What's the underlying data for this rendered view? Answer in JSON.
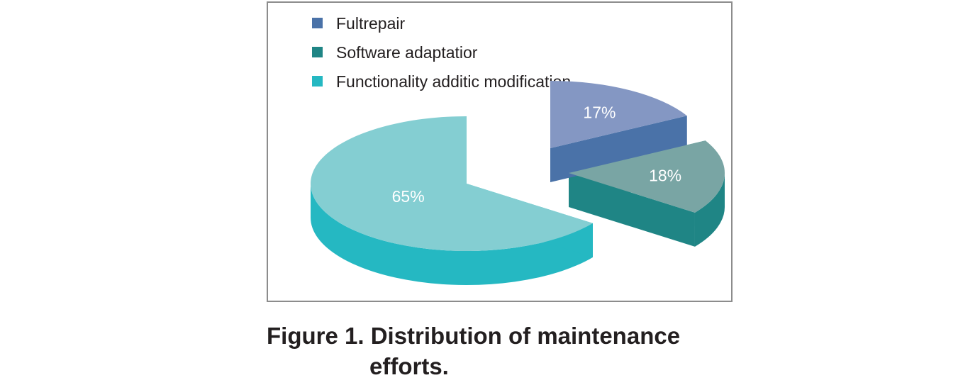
{
  "chart_data": {
    "type": "pie",
    "style": "3d-exploded",
    "slices": [
      {
        "label": "Fultrepair",
        "value": 17,
        "value_label": "17%",
        "color": "#4a72a8",
        "top_color": "#8497c3"
      },
      {
        "label": "Software adaptatior",
        "value": 18,
        "value_label": "18%",
        "color": "#1f8585",
        "top_color": "#79a5a4"
      },
      {
        "label": "Functionality additic modification",
        "value": 65,
        "value_label": "65%",
        "color": "#25b8c2",
        "top_color": "#84ced2"
      }
    ],
    "legend_position": "top"
  },
  "caption": {
    "line1": "Figure 1. Distribution of maintenance",
    "line2": "efforts."
  }
}
